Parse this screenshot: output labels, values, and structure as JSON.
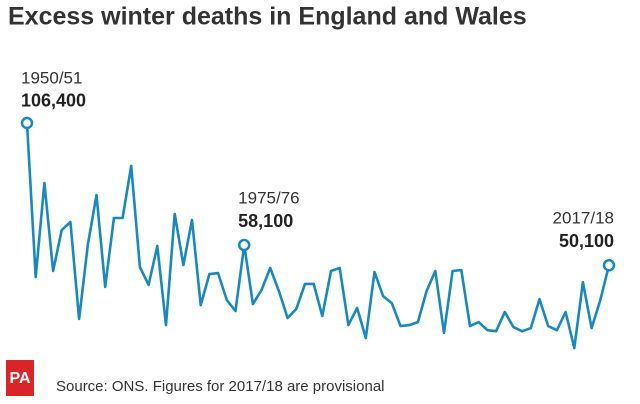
{
  "chart_data": {
    "type": "line",
    "title": "Excess winter deaths in England and Wales",
    "source": "Source: ONS. Figures for 2017/18 are provisional",
    "logo": "PA",
    "categories": [
      "1950/51",
      null,
      null,
      null,
      null,
      null,
      null,
      null,
      null,
      null,
      null,
      null,
      null,
      null,
      null,
      null,
      null,
      null,
      null,
      null,
      null,
      null,
      null,
      null,
      null,
      "1975/76",
      null,
      null,
      null,
      null,
      null,
      null,
      null,
      null,
      null,
      null,
      null,
      null,
      null,
      null,
      null,
      null,
      null,
      null,
      null,
      null,
      null,
      null,
      null,
      null,
      null,
      null,
      null,
      null,
      null,
      null,
      null,
      null,
      null,
      null,
      null,
      null,
      null,
      null,
      null,
      null,
      null,
      "2017/18"
    ],
    "series": [
      {
        "name": null,
        "color": "#1b88bd",
        "values": [
          106400,
          45400,
          82700,
          47800,
          64000,
          67200,
          28800,
          58100,
          77900,
          41500,
          68800,
          68800,
          89400,
          49400,
          42300,
          57700,
          26400,
          70400,
          50200,
          68000,
          34300,
          46600,
          47000,
          36300,
          32000,
          58100,
          34700,
          40300,
          49000,
          39900,
          29200,
          32800,
          42700,
          42700,
          30000,
          47800,
          49000,
          26400,
          33200,
          21300,
          47400,
          37900,
          35100,
          26000,
          26400,
          27600,
          39900,
          47800,
          23300,
          47800,
          48200,
          26000,
          27600,
          24400,
          24000,
          31600,
          25600,
          24000,
          25200,
          36700,
          26000,
          24400,
          31600,
          17300,
          43400,
          25200,
          36300,
          50100
        ],
        "value_labels": [
          "106,400",
          null,
          null,
          null,
          null,
          null,
          null,
          null,
          null,
          null,
          null,
          null,
          null,
          null,
          null,
          null,
          null,
          null,
          null,
          null,
          null,
          null,
          null,
          null,
          null,
          "58,100",
          null,
          null,
          null,
          null,
          null,
          null,
          null,
          null,
          null,
          null,
          null,
          null,
          null,
          null,
          null,
          null,
          null,
          null,
          null,
          null,
          null,
          null,
          null,
          null,
          null,
          null,
          null,
          null,
          null,
          null,
          null,
          null,
          null,
          null,
          null,
          null,
          null,
          null,
          null,
          null,
          null,
          "50,100"
        ]
      }
    ],
    "ylim": [
      0,
      110000
    ]
  }
}
